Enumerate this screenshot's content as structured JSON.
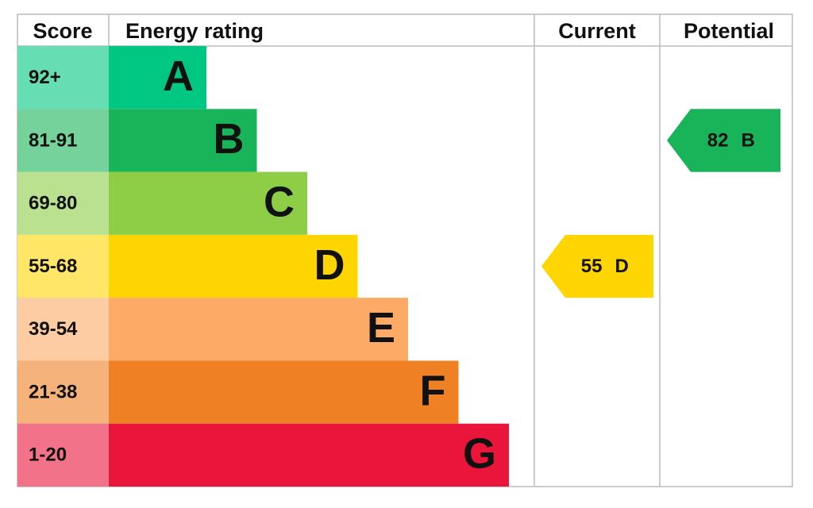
{
  "header": {
    "score": "Score",
    "energy_rating": "Energy rating",
    "current": "Current",
    "potential": "Potential"
  },
  "bands": [
    {
      "score": "92+",
      "rating": "A",
      "color": "#00c781"
    },
    {
      "score": "81-91",
      "rating": "B",
      "color": "#19b459"
    },
    {
      "score": "69-80",
      "rating": "C",
      "color": "#8dce46"
    },
    {
      "score": "55-68",
      "rating": "D",
      "color": "#ffd500"
    },
    {
      "score": "39-54",
      "rating": "E",
      "color": "#fcaa65"
    },
    {
      "score": "21-38",
      "rating": "F",
      "color": "#ef8023"
    },
    {
      "score": "1-20",
      "rating": "G",
      "color": "#e9153b"
    }
  ],
  "current": {
    "score": 55,
    "rating": "D"
  },
  "potential": {
    "score": 82,
    "rating": "B"
  }
}
